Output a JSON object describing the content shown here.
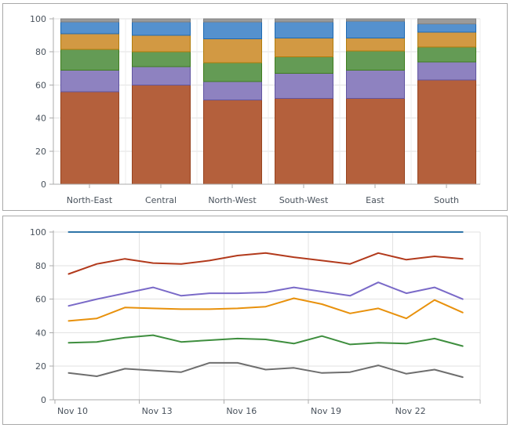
{
  "colors": {
    "panel_border": "#a9a9a9",
    "axis": "#ababab",
    "grid": "#e2e2e2",
    "grid_light": "#ececec",
    "tick_label": "#49525c"
  },
  "chart_data": [
    {
      "type": "bar",
      "stacking": "percent",
      "title": "",
      "xlabel": "",
      "ylabel": "",
      "ylim": [
        0,
        100
      ],
      "yticks": [
        0,
        20,
        40,
        60,
        80,
        100
      ],
      "grid": true,
      "legend": "none",
      "categories": [
        "North-East",
        "Central",
        "North-West",
        "South-West",
        "East",
        "South"
      ],
      "series": [
        {
          "name": "segment-rust",
          "fill": "#b4603c",
          "stroke": "#96431e",
          "values": [
            56,
            60,
            51,
            52,
            52,
            63
          ]
        },
        {
          "name": "segment-purple",
          "fill": "#8e82c0",
          "stroke": "#6155a0",
          "values": [
            13,
            11,
            11,
            15,
            17,
            11
          ]
        },
        {
          "name": "segment-green",
          "fill": "#649b55",
          "stroke": "#3e7c1f",
          "values": [
            12.5,
            9,
            11.5,
            10,
            11.5,
            9
          ]
        },
        {
          "name": "segment-orange",
          "fill": "#d29943",
          "stroke": "#b07c0b",
          "values": [
            9.5,
            10,
            14.5,
            11.5,
            8,
            9
          ]
        },
        {
          "name": "segment-blue",
          "fill": "#5591ce",
          "stroke": "#1f69b0",
          "values": [
            7,
            8,
            10,
            9.5,
            10,
            5
          ]
        },
        {
          "name": "segment-gray",
          "fill": "#9a9a9a",
          "stroke": "#808080",
          "values": [
            2,
            2,
            2,
            2,
            1.5,
            3
          ]
        }
      ]
    },
    {
      "type": "line",
      "title": "",
      "xlabel": "",
      "ylabel": "",
      "ylim": [
        0,
        100
      ],
      "yticks": [
        0,
        20,
        40,
        60,
        80,
        100
      ],
      "grid": true,
      "legend": "none",
      "n_points": 15,
      "x_tick_labels": [
        "Nov 10",
        "Nov 13",
        "Nov 16",
        "Nov 19",
        "Nov 22"
      ],
      "x_tick_every": 3,
      "series": [
        {
          "name": "line-blue",
          "color": "#2e74a8",
          "values": [
            100,
            100,
            100,
            100,
            100,
            100,
            100,
            100,
            100,
            100,
            100,
            100,
            100,
            100,
            100
          ]
        },
        {
          "name": "line-red",
          "color": "#b23a1c",
          "values": [
            75,
            81,
            84,
            81.5,
            81,
            83,
            86,
            87.5,
            85,
            83,
            81,
            87.5,
            83.5,
            85.5,
            84
          ]
        },
        {
          "name": "line-purple",
          "color": "#7a6ac8",
          "values": [
            56,
            60,
            63.5,
            67,
            62,
            63.5,
            63.5,
            64,
            67,
            64.5,
            62,
            70,
            63.5,
            67,
            60
          ]
        },
        {
          "name": "line-orange",
          "color": "#e8910c",
          "values": [
            47,
            48.5,
            55,
            54.5,
            54,
            54,
            54.5,
            55.5,
            60.5,
            57,
            51.5,
            54.5,
            48.5,
            59.5,
            52
          ]
        },
        {
          "name": "line-green",
          "color": "#3e8e3e",
          "values": [
            34,
            34.5,
            37,
            38.5,
            34.5,
            35.5,
            36.5,
            36,
            33.5,
            38,
            33,
            34,
            33.5,
            36.5,
            32
          ]
        },
        {
          "name": "line-gray",
          "color": "#6e6e6e",
          "values": [
            16,
            14,
            18.5,
            17.5,
            16.5,
            22,
            22,
            18,
            19,
            16,
            16.5,
            20.5,
            15.5,
            18,
            13.5
          ]
        }
      ]
    }
  ]
}
